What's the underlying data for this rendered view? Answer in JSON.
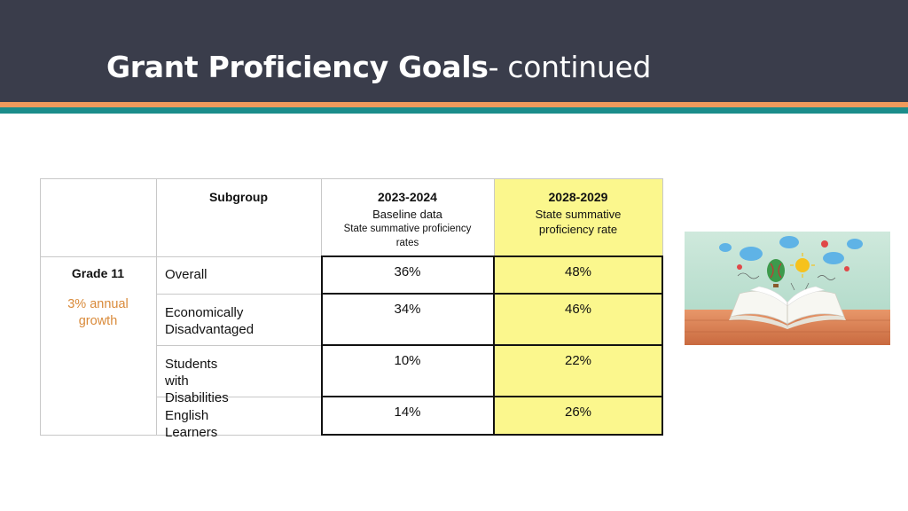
{
  "slide": {
    "title_bold": "Grant Proficiency Goals",
    "title_rest": "- continued",
    "colors": {
      "header": "#3a3d4b",
      "accent_orange": "#ef9a5c",
      "accent_teal": "#1b8d8b",
      "highlight": "#fbf78d",
      "growth_text": "#d98a3a"
    }
  },
  "table": {
    "headers": {
      "subgroup": "Subgroup",
      "baseline": {
        "year": "2023-2024",
        "line1": "Baseline data",
        "line2": "State summative proficiency",
        "line3": "rates"
      },
      "target": {
        "year": "2028-2029",
        "line1": "State summative",
        "line2": "proficiency rate"
      }
    },
    "group": {
      "label": "Grade 11",
      "growth_line1": "3% annual",
      "growth_line2": "growth"
    },
    "rows": [
      {
        "line1": "Overall",
        "line2": "",
        "baseline": "36%",
        "target": "48%"
      },
      {
        "line1": "Economically",
        "line2": "Disadvantaged",
        "baseline": "34%",
        "target": "46%"
      },
      {
        "line1": "Students with",
        "line2": "Disabilities",
        "baseline": "10%",
        "target": "22%"
      },
      {
        "line1": "English Learners",
        "line2": "",
        "baseline": "14%",
        "target": "26%"
      }
    ]
  },
  "illustration": {
    "icon": "open-book-with-balloons-illustration"
  }
}
